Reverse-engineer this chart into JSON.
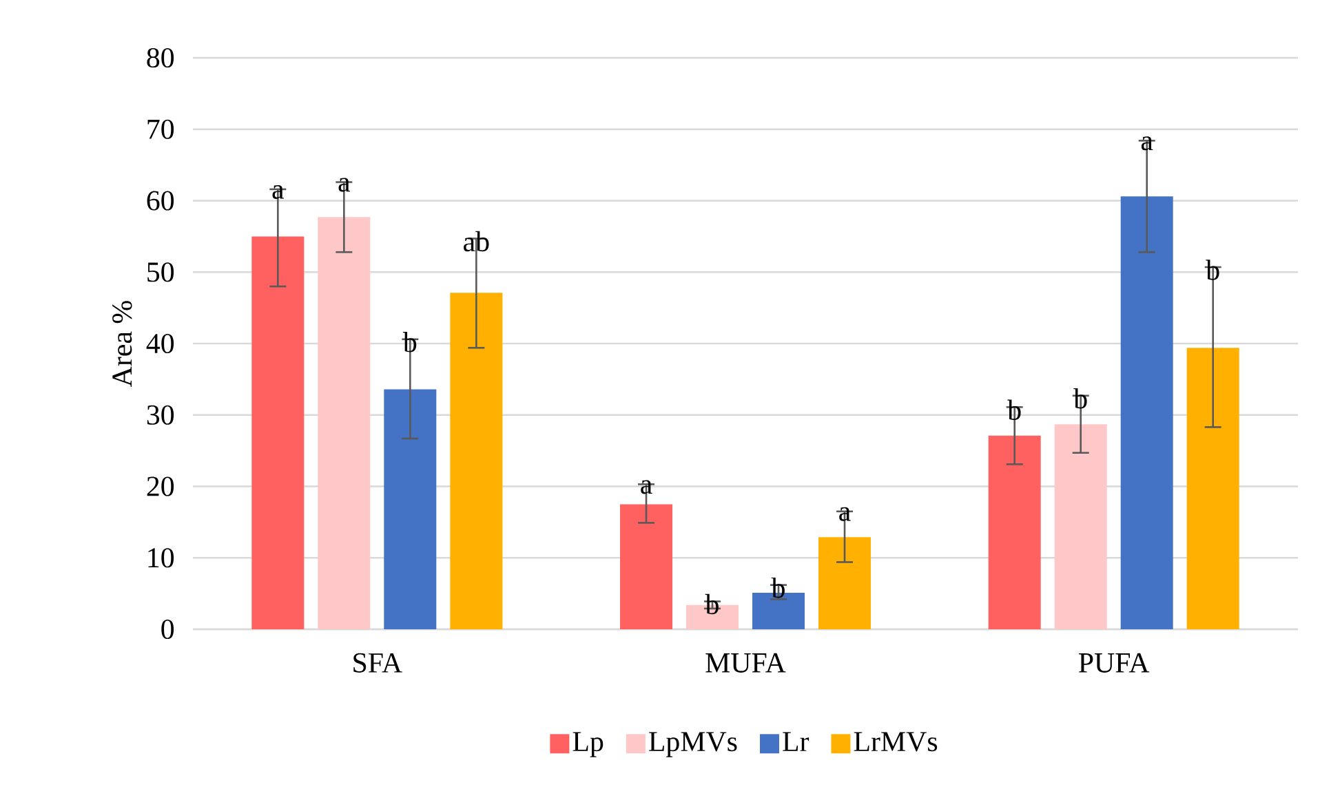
{
  "chart_data": {
    "type": "bar",
    "ylabel": "Area %",
    "categories": [
      "SFA",
      "MUFA",
      "PUFA"
    ],
    "ylim": [
      0,
      80
    ],
    "yticks": [
      0,
      10,
      20,
      30,
      40,
      50,
      60,
      70,
      80
    ],
    "grid": "y",
    "legend": "bottom",
    "series": [
      {
        "name": "Lp",
        "color": "#ff6161",
        "values": [
          55,
          17.5,
          27.1
        ],
        "errors": [
          [
            48,
            61.6
          ],
          [
            14.9,
            20.3
          ],
          [
            23.1,
            31.1
          ]
        ],
        "value_labels": [
          "a",
          "a",
          "b"
        ]
      },
      {
        "name": "LpMVs",
        "color": "#ffc8c8",
        "values": [
          57.7,
          3.4,
          28.7
        ],
        "errors": [
          [
            52.8,
            62.6
          ],
          [
            2.9,
            3.9
          ],
          [
            24.7,
            32.7
          ]
        ],
        "value_labels": [
          "a",
          "b",
          "b"
        ]
      },
      {
        "name": "Lr",
        "color": "#4472c4",
        "values": [
          33.6,
          5.1,
          60.6
        ],
        "errors": [
          [
            26.7,
            40.6
          ],
          [
            4.2,
            6.2
          ],
          [
            52.8,
            68.4
          ]
        ],
        "value_labels": [
          "b",
          "b",
          "a"
        ]
      },
      {
        "name": "LrMVs",
        "color": "#ffb000",
        "values": [
          47.1,
          12.9,
          39.4
        ],
        "errors": [
          [
            39.4,
            54.7
          ],
          [
            9.4,
            16.5
          ],
          [
            28.3,
            50.7
          ]
        ],
        "value_labels": [
          "ab",
          "a",
          "b"
        ]
      }
    ]
  }
}
